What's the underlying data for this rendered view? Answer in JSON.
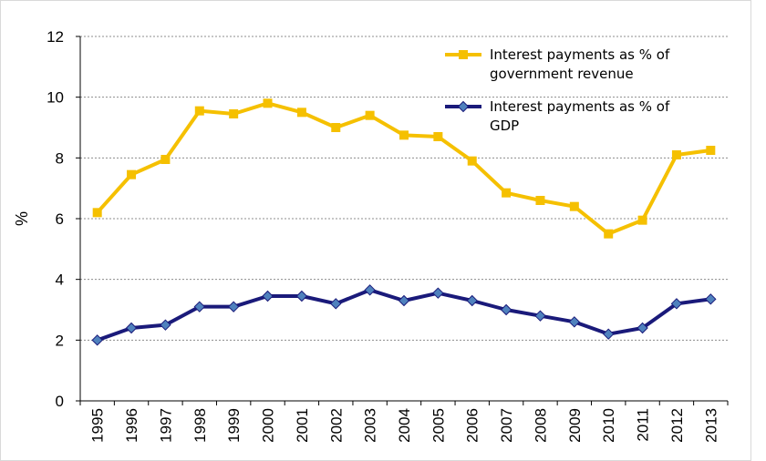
{
  "chart_data": {
    "type": "line",
    "title": "",
    "xlabel": "",
    "ylabel": "%",
    "ylim": [
      0,
      12
    ],
    "yticks": [
      0,
      2,
      4,
      6,
      8,
      10,
      12
    ],
    "grid": "horizontal dashed",
    "legend_position": "top-right",
    "categories": [
      "1995",
      "1996",
      "1997",
      "1998",
      "1999",
      "2000",
      "2001",
      "2002",
      "2003",
      "2004",
      "2005",
      "2006",
      "2007",
      "2008",
      "2009",
      "2010",
      "2011",
      "2012",
      "2013"
    ],
    "series": [
      {
        "name": "Interest payments as % of government revenue",
        "legend_lines": [
          "Interest payments as % of",
          "government revenue"
        ],
        "color": "#f5c000",
        "marker": "square",
        "values": [
          6.2,
          7.45,
          7.95,
          9.55,
          9.45,
          9.8,
          9.5,
          9.0,
          9.4,
          8.75,
          8.7,
          7.9,
          6.85,
          6.6,
          6.4,
          5.5,
          5.95,
          8.1,
          8.25
        ]
      },
      {
        "name": "Interest payments as % of GDP",
        "legend_lines": [
          "Interest payments as % of",
          "GDP"
        ],
        "color": "#1a1a7a",
        "marker_color": "#4f81bd",
        "marker": "diamond",
        "values": [
          2.0,
          2.4,
          2.5,
          3.1,
          3.1,
          3.45,
          3.45,
          3.2,
          3.65,
          3.3,
          3.55,
          3.3,
          3.0,
          2.8,
          2.6,
          2.2,
          2.4,
          3.2,
          3.35
        ]
      }
    ]
  }
}
